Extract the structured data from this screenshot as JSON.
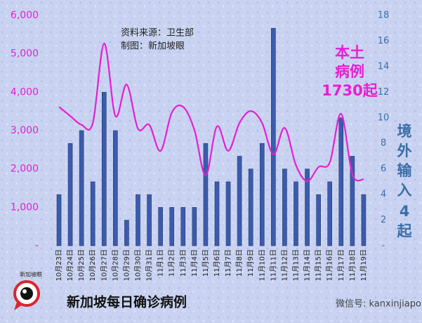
{
  "chart_data": {
    "type": "bar-line",
    "title": "新加坡每日确诊病例",
    "source": "资料来源：卫生部",
    "credit": "制图：新加坡眼",
    "local_note": [
      "本土",
      "病例",
      "1730起"
    ],
    "import_note": [
      "境",
      "外",
      "输",
      "入",
      "4",
      "起"
    ],
    "watermark": "微信号: kanxinjiapo",
    "logo": "新加坡眼",
    "categories": [
      "10月23日",
      "10月24日",
      "10月25日",
      "10月26日",
      "10月27日",
      "10月28日",
      "10月29日",
      "10月30日",
      "10月31日",
      "11月1日",
      "11月2日",
      "11月3日",
      "11月4日",
      "11月5日",
      "11月6日",
      "11月7日",
      "11月8日",
      "11月9日",
      "11月10日",
      "11月11日",
      "11月12日",
      "11月13日",
      "11月14日",
      "11月15日",
      "11月16日",
      "11月17日",
      "11月18日",
      "11月19日"
    ],
    "series": [
      {
        "name": "本土病例",
        "type": "line",
        "color": "#e61fd2",
        "axis": "y",
        "values": [
          3620,
          3380,
          3150,
          3200,
          5270,
          3380,
          4200,
          3050,
          3150,
          2470,
          3470,
          3620,
          3020,
          1830,
          3110,
          2470,
          3200,
          3510,
          3200,
          2380,
          3070,
          2100,
          1680,
          2050,
          2170,
          3440,
          1860,
          1730
        ]
      },
      {
        "name": "境外输入",
        "type": "bar",
        "color": "#3b5cad",
        "axis": "y2",
        "values": [
          4,
          8,
          9,
          5,
          12,
          9,
          2,
          4,
          4,
          3,
          3,
          3,
          3,
          8,
          5,
          5,
          7,
          6,
          8,
          17,
          6,
          5,
          6,
          4,
          5,
          10,
          7,
          4
        ]
      }
    ],
    "ylim": [
      0,
      6000
    ],
    "yticks": [
      {
        "value": 0,
        "label": "-"
      },
      {
        "value": 1000,
        "label": "1,000"
      },
      {
        "value": 2000,
        "label": "2,000"
      },
      {
        "value": 3000,
        "label": "3,000"
      },
      {
        "value": 4000,
        "label": "4,000"
      },
      {
        "value": 5000,
        "label": "5,000"
      },
      {
        "value": 6000,
        "label": "6,000"
      }
    ],
    "y2lim": [
      0,
      18
    ],
    "y2ticks": [
      {
        "value": 0,
        "label": "-"
      },
      2,
      4,
      6,
      8,
      10,
      12,
      14,
      16,
      18
    ]
  }
}
